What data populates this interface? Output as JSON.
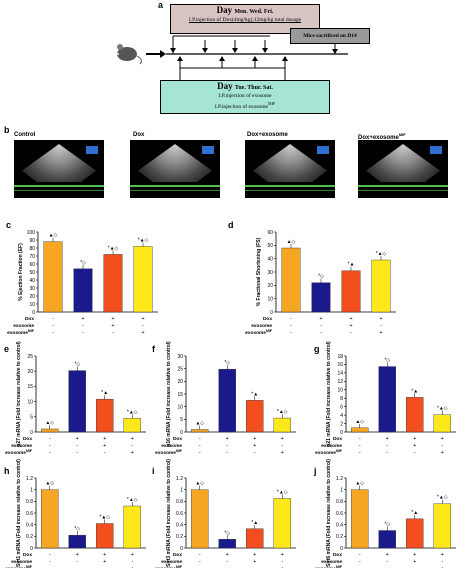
{
  "panels": {
    "a": {
      "label": "a",
      "day_top": {
        "title": "Day",
        "days": "Mon. Wed. Fri.",
        "line": "I.P.injection of Dox(4mg/kg),12mg/kg total dosage"
      },
      "mice_box": "Mice sacrificed on D14",
      "day_bottom": {
        "title": "Day",
        "days": "Tue. Thur. Sat.",
        "line1": "I.P.injection of exosome",
        "line2": "I.P.injection of exosome",
        "line2_sup": "MIF"
      },
      "colors": {
        "top_box": "#d9c4c4",
        "mice_box": "#9a9a9a",
        "bottom_box": "#a6e5d6"
      }
    },
    "b": {
      "label": "b",
      "titles": [
        "Control",
        "Dox",
        "Dox+exosome",
        "Dox+exosome"
      ],
      "sup": "MIF"
    }
  },
  "row_labels": {
    "dox": "Dox",
    "exosome": "exosome",
    "exosome_mif": "exosome",
    "mif_sup": "MIF"
  },
  "charts": {
    "c": {
      "label": "c",
      "ylabel": "% Ejection Fraction (EF)",
      "ylim": [
        0,
        100
      ],
      "yticks": [
        "0",
        "10",
        "20",
        "30",
        "40",
        "50",
        "60",
        "70",
        "80",
        "90",
        "100"
      ],
      "values": [
        88,
        54,
        72,
        82
      ],
      "marks": [
        "▲◇",
        "*◇",
        "*▲◇",
        "*▲◇"
      ],
      "grid": {
        "dox": [
          "-",
          "+",
          "+",
          "+"
        ],
        "exosome": [
          "-",
          "-",
          "+",
          "-"
        ],
        "exosome_mif": [
          "-",
          "-",
          "-",
          "+"
        ]
      }
    },
    "d": {
      "label": "d",
      "ylabel": "% Fractional Shortening (FS)",
      "ylim": [
        0,
        60
      ],
      "yticks": [
        "0",
        "10",
        "20",
        "30",
        "40",
        "50",
        "60"
      ],
      "values": [
        48,
        22,
        31,
        39
      ],
      "marks": [
        "▲◇",
        "*◇",
        "*▲",
        "*▲◇"
      ],
      "grid": {
        "dox": [
          "-",
          "+",
          "+",
          "+"
        ],
        "exosome": [
          "-",
          "-",
          "+",
          "-"
        ],
        "exosome_mif": [
          "-",
          "-",
          "-",
          "+"
        ]
      }
    },
    "e": {
      "label": "e",
      "ylabel": "p27 mRNA (Fold increase relative to control)",
      "ylim": [
        0,
        25
      ],
      "yticks": [
        "0",
        "5",
        "10",
        "15",
        "20",
        "25"
      ],
      "values": [
        1,
        20.2,
        10.8,
        4.5
      ],
      "marks": [
        "▲◇",
        "*◇",
        "*▲",
        "*▲◇"
      ],
      "grid": {
        "dox": [
          "-",
          "+",
          "+",
          "+"
        ],
        "exosome": [
          "-",
          "-",
          "+",
          "-"
        ],
        "exosome_mif": [
          "-",
          "-",
          "-",
          "+"
        ]
      }
    },
    "f": {
      "label": "f",
      "ylabel": "p16 mRNA (Fold increase relative to control)",
      "ylim": [
        0,
        30
      ],
      "yticks": [
        "0",
        "5",
        "10",
        "15",
        "20",
        "25",
        "30"
      ],
      "values": [
        1,
        24.8,
        12.5,
        5.5
      ],
      "marks": [
        "▲◇",
        "*◇",
        "*▲",
        "*▲◇"
      ],
      "grid": {
        "dox": [
          "-",
          "+",
          "+",
          "+"
        ],
        "exosome": [
          "-",
          "-",
          "+",
          "-"
        ],
        "exosome_mif": [
          "-",
          "-",
          "-",
          "+"
        ]
      }
    },
    "g": {
      "label": "g",
      "ylabel": "p21 mRNA (Fold increase relative to control)",
      "ylim": [
        0,
        18
      ],
      "yticks": [
        "0",
        "2",
        "4",
        "6",
        "8",
        "10",
        "12",
        "14",
        "16",
        "18"
      ],
      "values": [
        1,
        15.5,
        8.2,
        4.1
      ],
      "marks": [
        "▲◇",
        "*◇",
        "*▲",
        "*▲◇"
      ],
      "grid": {
        "dox": [
          "-",
          "+",
          "+",
          "+"
        ],
        "exosome": [
          "-",
          "-",
          "+",
          "-"
        ],
        "exosome_mif": [
          "-",
          "-",
          "-",
          "+"
        ]
      }
    },
    "h": {
      "label": "h",
      "ylabel": "Sirt1 mRNA (Fold increase relative to control)",
      "ylim": [
        0,
        1.2
      ],
      "yticks": [
        "0",
        "0.2",
        "0.4",
        "0.6",
        "0.8",
        "1",
        "1.2"
      ],
      "values": [
        1.0,
        0.22,
        0.42,
        0.72
      ],
      "marks": [
        "▲◇",
        "*◇",
        "*▲◇",
        "*▲◇"
      ],
      "grid": {
        "dox": [
          "-",
          "+",
          "+",
          "+"
        ],
        "exosome": [
          "-",
          "-",
          "+",
          "-"
        ],
        "exosome_mif": [
          "-",
          "-",
          "-",
          "+"
        ]
      }
    },
    "i": {
      "label": "i",
      "ylabel": "Sirt3 mRNA (Fold increase relative to control)",
      "ylim": [
        0,
        1.2
      ],
      "yticks": [
        "0",
        "0.2",
        "0.4",
        "0.6",
        "0.8",
        "1",
        "1.2"
      ],
      "values": [
        1.0,
        0.15,
        0.33,
        0.85
      ],
      "marks": [
        "▲◇",
        "*◇",
        "*▲",
        "*▲◇"
      ],
      "grid": {
        "dox": [
          "-",
          "+",
          "+",
          "+"
        ],
        "exosome": [
          "-",
          "-",
          "+",
          "-"
        ],
        "exosome_mif": [
          "-",
          "-",
          "-",
          "+"
        ]
      }
    },
    "j": {
      "label": "j",
      "ylabel": "Sirt6 mRNA (Fold increase relative to control)",
      "ylim": [
        0,
        1.2
      ],
      "yticks": [
        "0",
        "0.2",
        "0.4",
        "0.6",
        "0.8",
        "1",
        "1.2"
      ],
      "values": [
        1.0,
        0.3,
        0.5,
        0.76
      ],
      "marks": [
        "▲◇",
        "*◇",
        "*▲",
        "*▲◇"
      ],
      "grid": {
        "dox": [
          "-",
          "+",
          "+",
          "+"
        ],
        "exosome": [
          "-",
          "-",
          "+",
          "-"
        ],
        "exosome_mif": [
          "-",
          "-",
          "-",
          "+"
        ]
      }
    }
  },
  "bar_colors": [
    "#f5a623",
    "#1a1a8c",
    "#f24e1e",
    "#ffe81a"
  ],
  "chart_data": [
    {
      "type": "bar",
      "panel": "c",
      "categories": [
        "1",
        "2",
        "3",
        "4"
      ],
      "values": [
        88,
        54,
        72,
        82
      ],
      "ylabel": "% Ejection Fraction (EF)",
      "ylim": [
        0,
        100
      ]
    },
    {
      "type": "bar",
      "panel": "d",
      "categories": [
        "1",
        "2",
        "3",
        "4"
      ],
      "values": [
        48,
        22,
        31,
        39
      ],
      "ylabel": "% Fractional Shortening (FS)",
      "ylim": [
        0,
        60
      ]
    },
    {
      "type": "bar",
      "panel": "e",
      "categories": [
        "1",
        "2",
        "3",
        "4"
      ],
      "values": [
        1,
        20.2,
        10.8,
        4.5
      ],
      "ylabel": "p27 mRNA (Fold increase relative to control)",
      "ylim": [
        0,
        25
      ]
    },
    {
      "type": "bar",
      "panel": "f",
      "categories": [
        "1",
        "2",
        "3",
        "4"
      ],
      "values": [
        1,
        24.8,
        12.5,
        5.5
      ],
      "ylabel": "p16 mRNA (Fold increase relative to control)",
      "ylim": [
        0,
        30
      ]
    },
    {
      "type": "bar",
      "panel": "g",
      "categories": [
        "1",
        "2",
        "3",
        "4"
      ],
      "values": [
        1,
        15.5,
        8.2,
        4.1
      ],
      "ylabel": "p21 mRNA (Fold increase relative to control)",
      "ylim": [
        0,
        18
      ]
    },
    {
      "type": "bar",
      "panel": "h",
      "categories": [
        "1",
        "2",
        "3",
        "4"
      ],
      "values": [
        1.0,
        0.22,
        0.42,
        0.72
      ],
      "ylabel": "Sirt1 mRNA (Fold increase relative to control)",
      "ylim": [
        0,
        1.2
      ]
    },
    {
      "type": "bar",
      "panel": "i",
      "categories": [
        "1",
        "2",
        "3",
        "4"
      ],
      "values": [
        1.0,
        0.15,
        0.33,
        0.85
      ],
      "ylabel": "Sirt3 mRNA (Fold increase relative to control)",
      "ylim": [
        0,
        1.2
      ]
    },
    {
      "type": "bar",
      "panel": "j",
      "categories": [
        "1",
        "2",
        "3",
        "4"
      ],
      "values": [
        1.0,
        0.3,
        0.5,
        0.76
      ],
      "ylabel": "Sirt6 mRNA (Fold increase relative to control)",
      "ylim": [
        0,
        1.2
      ]
    }
  ]
}
